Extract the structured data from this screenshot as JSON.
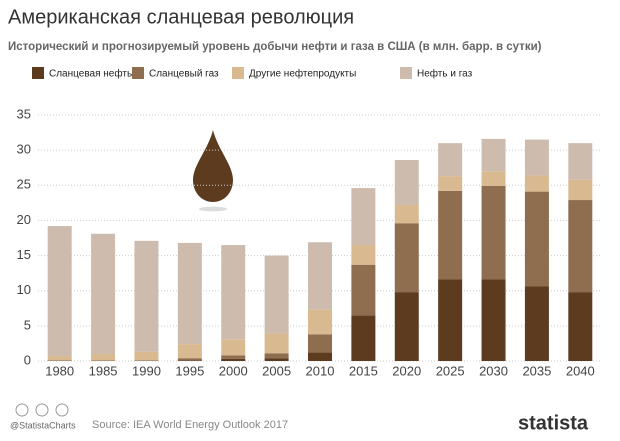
{
  "chart_data": {
    "type": "stacked-bar",
    "title": "Американская сланцевая революция",
    "subtitle": "Исторический и прогнозируемый уровень добычи нефти и газа в США (в млн. барр. в сутки)",
    "categories": [
      "1980",
      "1985",
      "1990",
      "1995",
      "2000",
      "2005",
      "2010",
      "2015",
      "2020",
      "2025",
      "2030",
      "2035",
      "2040"
    ],
    "series": [
      {
        "name": "Сланцевая нефть",
        "color": "#5c3b1f",
        "values": [
          0,
          0,
          0,
          0.1,
          0.3,
          0.4,
          1.2,
          6.5,
          9.8,
          11.6,
          11.6,
          10.6,
          9.8
        ]
      },
      {
        "name": "Сланцевый газ",
        "color": "#8f6d4f",
        "values": [
          0.1,
          0.1,
          0.1,
          0.3,
          0.5,
          0.7,
          2.6,
          7.2,
          9.8,
          12.6,
          13.3,
          13.5,
          13.1
        ]
      },
      {
        "name": "Другие нефтепродукты",
        "color": "#d9ba90",
        "values": [
          0.6,
          0.9,
          1.2,
          2.0,
          2.3,
          2.8,
          3.5,
          2.8,
          2.6,
          2.1,
          2.1,
          2.3,
          2.9
        ]
      },
      {
        "name": "Нефть и газ",
        "color": "#cdbcae",
        "values": [
          18.5,
          17.1,
          15.8,
          14.4,
          13.4,
          11.1,
          9.6,
          8.1,
          6.4,
          4.7,
          4.6,
          5.1,
          5.2
        ]
      }
    ],
    "ylim": [
      0,
      35
    ],
    "yticks": [
      0,
      5,
      10,
      15,
      20,
      25,
      30,
      35
    ],
    "grid": true,
    "footer": {
      "handle": "@StatistaCharts",
      "source": "Source: IEA World Energy Outlook 2017",
      "brand": "statista"
    }
  }
}
